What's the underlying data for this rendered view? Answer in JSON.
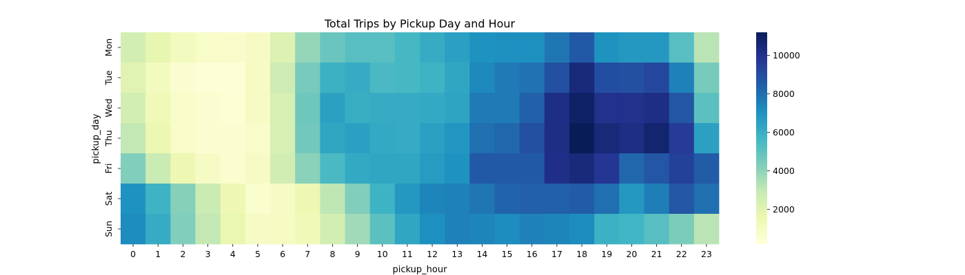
{
  "chart_data": {
    "type": "heatmap",
    "title": "Total Trips by Pickup Day and Hour",
    "xlabel": "pickup_hour",
    "ylabel": "pickup_day",
    "x": [
      "0",
      "1",
      "2",
      "3",
      "4",
      "5",
      "6",
      "7",
      "8",
      "9",
      "10",
      "11",
      "12",
      "13",
      "14",
      "15",
      "16",
      "17",
      "18",
      "19",
      "20",
      "21",
      "22",
      "23"
    ],
    "y": [
      "Mon",
      "Tue",
      "Wed",
      "Thu",
      "Fri",
      "Sat",
      "Sun"
    ],
    "values": [
      [
        2500,
        1800,
        1100,
        800,
        700,
        900,
        2200,
        3900,
        4800,
        5200,
        5200,
        5600,
        6100,
        6500,
        7000,
        7100,
        7100,
        7800,
        8600,
        7000,
        6800,
        6800,
        5200,
        3200
      ],
      [
        2000,
        1100,
        500,
        300,
        300,
        1000,
        2700,
        4500,
        5900,
        6100,
        5500,
        5600,
        5800,
        6300,
        7300,
        7700,
        7900,
        8900,
        10400,
        9000,
        8900,
        9200,
        7500,
        4500
      ],
      [
        2500,
        1300,
        800,
        500,
        400,
        900,
        2400,
        4700,
        6500,
        6000,
        6100,
        6100,
        6200,
        6400,
        7700,
        7700,
        8400,
        10200,
        10900,
        10000,
        10000,
        10200,
        8700,
        5100
      ],
      [
        3000,
        1600,
        800,
        500,
        500,
        700,
        2400,
        4600,
        6300,
        6500,
        6200,
        6100,
        6500,
        6900,
        8000,
        8200,
        8900,
        10200,
        11200,
        10500,
        10200,
        10700,
        9600,
        6500
      ],
      [
        4300,
        2800,
        1500,
        900,
        600,
        900,
        2600,
        4100,
        5500,
        6200,
        6300,
        6300,
        6700,
        7000,
        8600,
        8600,
        8600,
        10100,
        10400,
        9800,
        8200,
        8700,
        9400,
        8500
      ],
      [
        7000,
        5800,
        4200,
        2800,
        1500,
        600,
        900,
        1500,
        3100,
        4300,
        5800,
        6800,
        7400,
        7500,
        7800,
        8300,
        8400,
        8400,
        8500,
        8000,
        6800,
        7600,
        8700,
        8000
      ],
      [
        7200,
        6100,
        4300,
        3000,
        1700,
        900,
        1000,
        1300,
        2500,
        3700,
        5100,
        6300,
        7100,
        7500,
        7400,
        7200,
        7500,
        7400,
        7200,
        5900,
        5700,
        5200,
        4400,
        3200
      ]
    ],
    "colorbar": {
      "min": 200,
      "max": 11200,
      "ticks": [
        "2000",
        "4000",
        "6000",
        "8000",
        "10000"
      ]
    },
    "colormap": "YlGnBu",
    "grid": false
  }
}
